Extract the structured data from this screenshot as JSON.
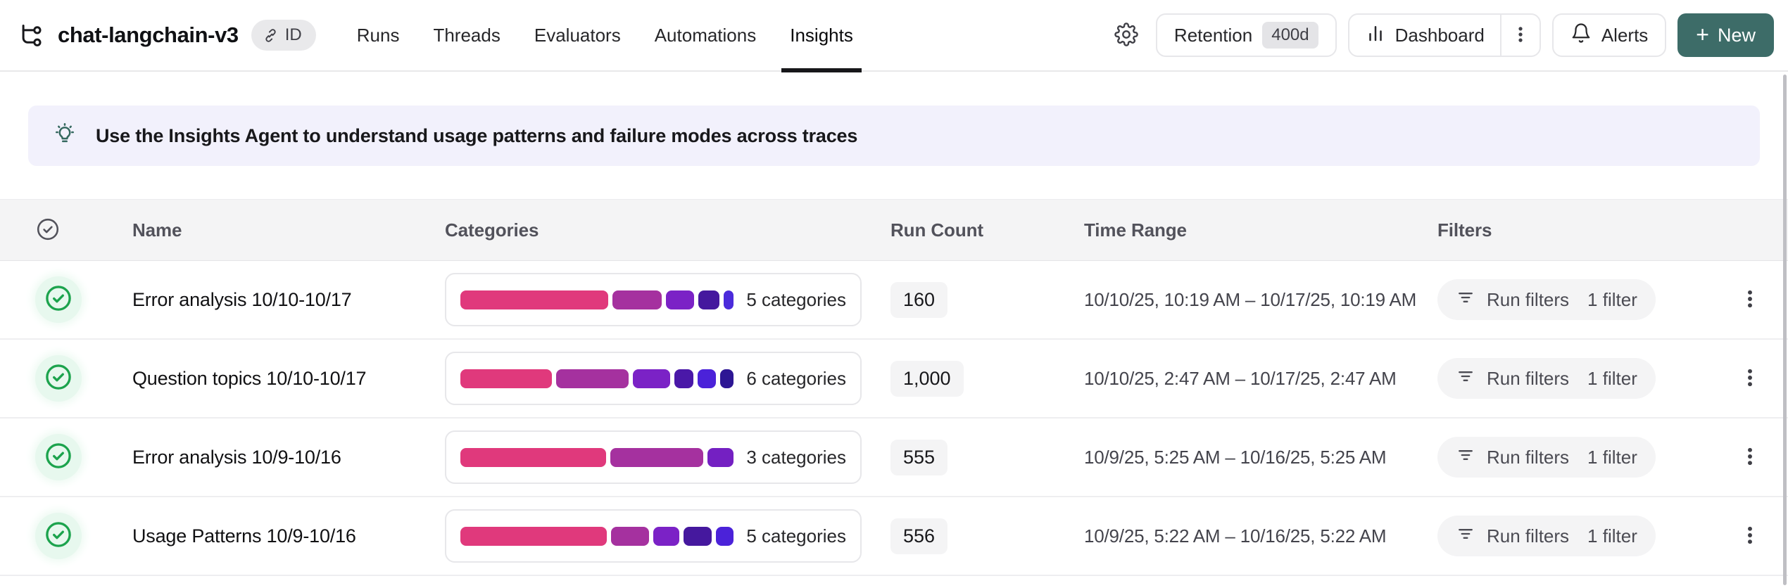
{
  "header": {
    "project_name": "chat-langchain-v3",
    "id_badge_label": "ID",
    "tabs": [
      {
        "label": "Runs",
        "active": false
      },
      {
        "label": "Threads",
        "active": false
      },
      {
        "label": "Evaluators",
        "active": false
      },
      {
        "label": "Automations",
        "active": false
      },
      {
        "label": "Insights",
        "active": true
      }
    ],
    "retention_button": {
      "label": "Retention",
      "value": "400d"
    },
    "dashboard_button": {
      "label": "Dashboard"
    },
    "alerts_button": {
      "label": "Alerts"
    },
    "new_button": {
      "plus": "+",
      "label": "New"
    }
  },
  "banner": {
    "text": "Use the Insights Agent to understand usage patterns and failure modes across traces"
  },
  "table": {
    "columns": {
      "name": "Name",
      "categories": "Categories",
      "run_count": "Run Count",
      "time_range": "Time Range",
      "filters": "Filters"
    },
    "rows": [
      {
        "name": "Error analysis 10/10-10/17",
        "categories_label": "5 categories",
        "segments": [
          {
            "pct": 57,
            "color": "#e0397c"
          },
          {
            "pct": 19,
            "color": "#a5319f"
          },
          {
            "pct": 11,
            "color": "#7b22c6"
          },
          {
            "pct": 8,
            "color": "#45189e"
          },
          {
            "pct": 4,
            "color": "#4b2bdb"
          }
        ],
        "run_count": "160",
        "time_range": "10/10/25, 10:19 AM – 10/17/25, 10:19 AM",
        "filters_label": "Run filters",
        "filters_count": "1 filter"
      },
      {
        "name": "Question topics 10/10-10/17",
        "categories_label": "6 categories",
        "segments": [
          {
            "pct": 34,
            "color": "#e0397c"
          },
          {
            "pct": 27,
            "color": "#a5319f"
          },
          {
            "pct": 14,
            "color": "#7b22c6"
          },
          {
            "pct": 7,
            "color": "#4a18a8"
          },
          {
            "pct": 7,
            "color": "#4b22d9"
          },
          {
            "pct": 5,
            "color": "#2d1694"
          }
        ],
        "run_count": "1,000",
        "time_range": "10/10/25, 2:47 AM – 10/17/25, 2:47 AM",
        "filters_label": "Run filters",
        "filters_count": "1 filter"
      },
      {
        "name": "Error analysis 10/9-10/16",
        "categories_label": "3 categories",
        "segments": [
          {
            "pct": 55,
            "color": "#e0397c"
          },
          {
            "pct": 35,
            "color": "#a5319f"
          },
          {
            "pct": 10,
            "color": "#7420c2"
          }
        ],
        "run_count": "555",
        "time_range": "10/9/25, 5:25 AM – 10/16/25, 5:25 AM",
        "filters_label": "Run filters",
        "filters_count": "1 filter"
      },
      {
        "name": "Usage Patterns 10/9-10/16",
        "categories_label": "5 categories",
        "segments": [
          {
            "pct": 57,
            "color": "#e0397c"
          },
          {
            "pct": 15,
            "color": "#a5319f"
          },
          {
            "pct": 10,
            "color": "#7b22c6"
          },
          {
            "pct": 11,
            "color": "#45189e"
          },
          {
            "pct": 7,
            "color": "#4b22d9"
          }
        ],
        "run_count": "556",
        "time_range": "10/9/25, 5:22 AM – 10/16/25, 5:22 AM",
        "filters_label": "Run filters",
        "filters_count": "1 filter"
      }
    ]
  },
  "colors": {
    "accent_new_button": "#3d6c68",
    "banner_bg": "#f2f1fc",
    "success_green": "#1ca34d",
    "table_header_bg": "#f4f4f5",
    "pill_bg": "#f4f4f5",
    "active_tab_underline": "#17171a"
  },
  "icons": {
    "project": "tree-icon",
    "id_badge": "link-icon",
    "settings": "gear-icon",
    "dashboard": "bar-chart-icon",
    "dashboard_menu": "kebab-icon",
    "alerts": "bell-icon",
    "new": "plus-icon",
    "banner": "lightbulb-icon",
    "select_all": "circle-check-icon",
    "row_status": "circle-check-icon",
    "run_filters": "filter-lines-icon",
    "row_menu": "kebab-icon"
  }
}
